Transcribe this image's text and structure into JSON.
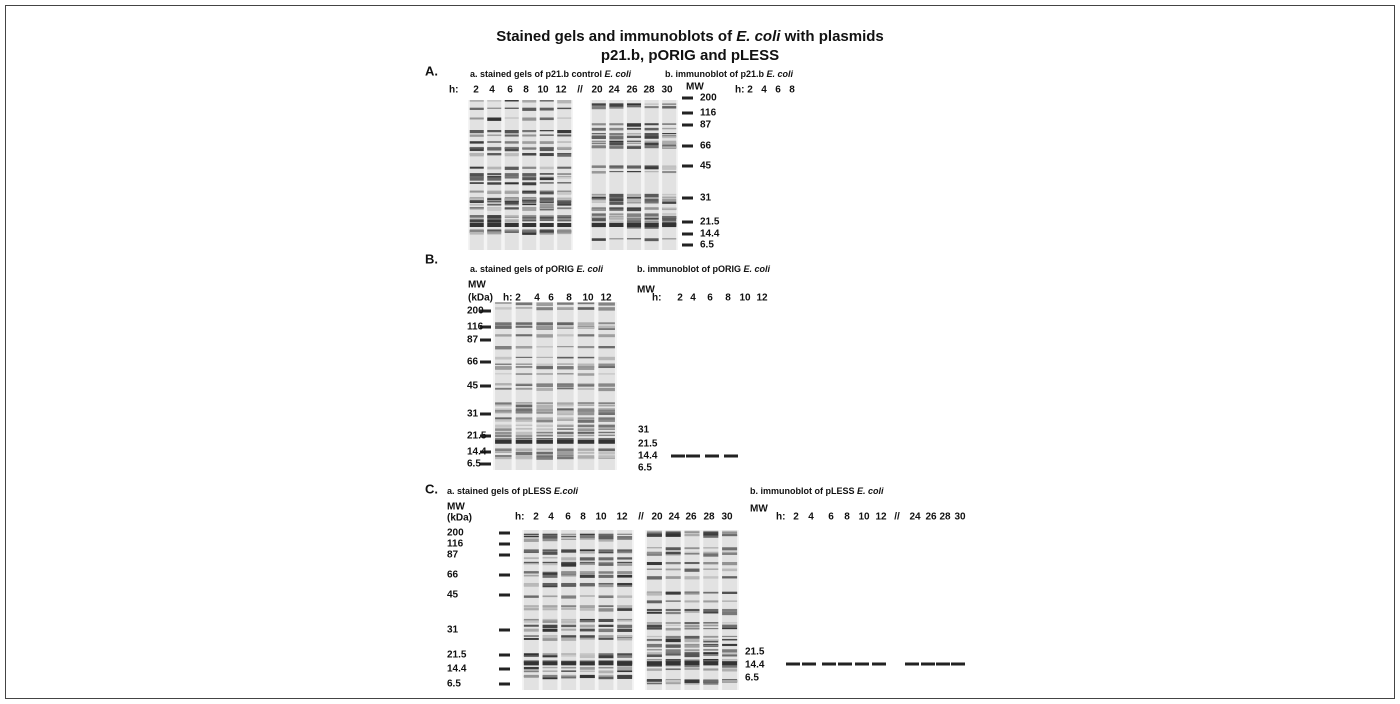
{
  "title": {
    "line1": [
      "Stained gels and immunoblots of ",
      "E. coli",
      " with plasmids"
    ],
    "line2": "p21.b, pORIG and pLESS"
  },
  "panels": [
    {
      "label": "A.",
      "gel": {
        "caption": [
          "a. stained gels of p21.b control ",
          "E. coli"
        ],
        "hours_prefix": "h:",
        "lanes": [
          "2",
          "4",
          "6",
          "8",
          "10",
          "12",
          "//",
          "20",
          "24",
          "26",
          "28",
          "30"
        ],
        "mw_header": "MW",
        "mw": [
          "200",
          "116",
          "87",
          "66",
          "45",
          "31",
          "21.5",
          "14.4",
          "6.5"
        ]
      },
      "blot": {
        "caption": [
          "b. immunoblot of p21.b ",
          "E. coli"
        ],
        "hours_prefix": "h:",
        "lanes": [
          "2",
          "4",
          "6",
          "8"
        ]
      }
    },
    {
      "label": "B.",
      "gel": {
        "caption": [
          "a. stained gels of pORIG ",
          "E. coli"
        ],
        "mw_header": "MW",
        "mw_unit": "(kDa)",
        "hours_prefix": "h:",
        "lanes": [
          "2",
          "4",
          "6",
          "8",
          "10",
          "12"
        ],
        "mw": [
          "200",
          "116",
          "87",
          "66",
          "45",
          "31",
          "21.5",
          "14.4",
          "6.5"
        ]
      },
      "blot": {
        "caption": [
          "b. immunoblot of pORIG ",
          "E. coli"
        ],
        "mw_header": "MW",
        "hours_prefix": "h:",
        "lanes": [
          "2",
          "4",
          "6",
          "8",
          "10",
          "12"
        ],
        "mw": [
          "31",
          "21.5",
          "14.4",
          "6.5"
        ]
      }
    },
    {
      "label": "C.",
      "gel": {
        "caption": [
          "a. stained gels of pLESS ",
          "E.coli"
        ],
        "mw_header": "MW",
        "mw_unit": "(kDa)",
        "hours_prefix": "h:",
        "lanes": [
          "2",
          "4",
          "6",
          "8",
          "10",
          "12",
          "//",
          "20",
          "24",
          "26",
          "28",
          "30"
        ],
        "mw": [
          "200",
          "116",
          "87",
          "66",
          "45",
          "31",
          "21.5",
          "14.4",
          "6.5"
        ]
      },
      "blot": {
        "caption": [
          "b. immunoblot of pLESS ",
          "E. coli"
        ],
        "mw_header": "MW",
        "hours_prefix": "h:",
        "lanes": [
          "2",
          "4",
          "6",
          "8",
          "10",
          "12",
          "//",
          "24",
          "26",
          "28",
          "30"
        ],
        "mw": [
          "21.5",
          "14.4",
          "6.5"
        ]
      }
    }
  ]
}
